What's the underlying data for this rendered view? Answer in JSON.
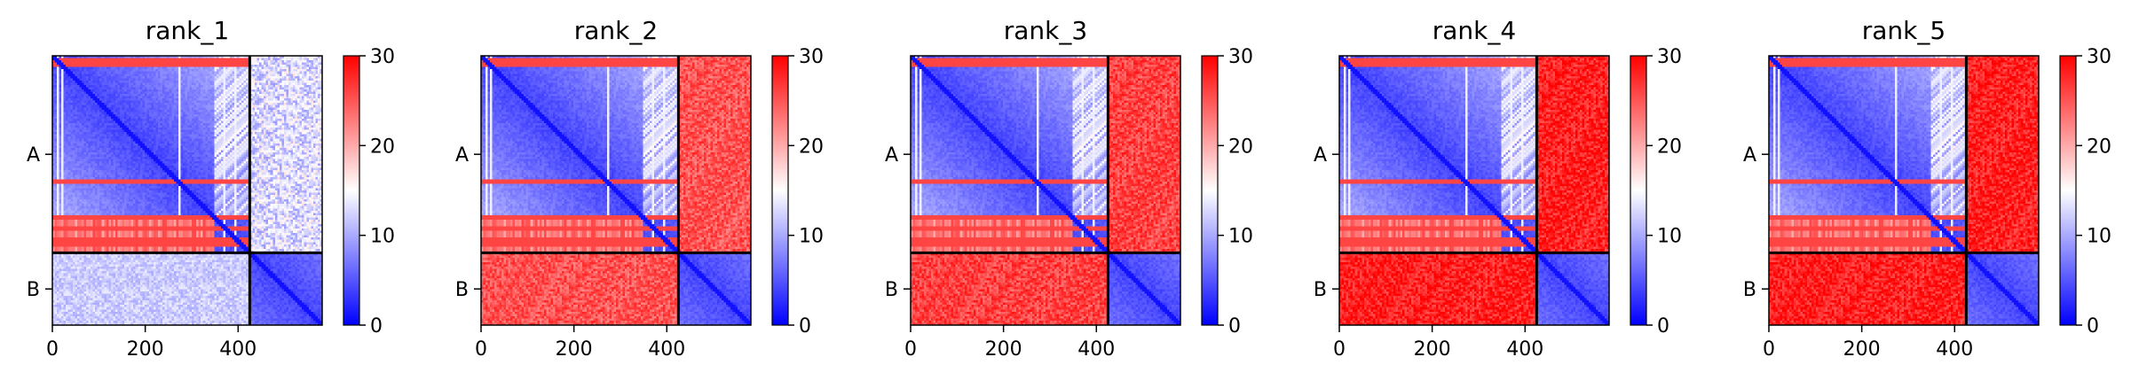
{
  "chart_data": [
    {
      "type": "heatmap",
      "title": "rank_1",
      "chains": [
        "A",
        "B"
      ],
      "chain_A_length": 425,
      "total_length": 581,
      "x_ticks": [
        0,
        200,
        400
      ],
      "colorbar": {
        "min": 0,
        "max": 30,
        "ticks": [
          0,
          10,
          20,
          30
        ],
        "colors": [
          "#0000ff",
          "#ffffff",
          "#ff0000"
        ]
      },
      "interchain_pae": 14
    },
    {
      "type": "heatmap",
      "title": "rank_2",
      "chains": [
        "A",
        "B"
      ],
      "chain_A_length": 425,
      "total_length": 581,
      "x_ticks": [
        0,
        200,
        400
      ],
      "colorbar": {
        "min": 0,
        "max": 30,
        "ticks": [
          0,
          10,
          20,
          30
        ],
        "colors": [
          "#0000ff",
          "#ffffff",
          "#ff0000"
        ]
      },
      "interchain_pae": 25
    },
    {
      "type": "heatmap",
      "title": "rank_3",
      "chains": [
        "A",
        "B"
      ],
      "chain_A_length": 425,
      "total_length": 581,
      "x_ticks": [
        0,
        200,
        400
      ],
      "colorbar": {
        "min": 0,
        "max": 30,
        "ticks": [
          0,
          10,
          20,
          30
        ],
        "colors": [
          "#0000ff",
          "#ffffff",
          "#ff0000"
        ]
      },
      "interchain_pae": 26
    },
    {
      "type": "heatmap",
      "title": "rank_4",
      "chains": [
        "A",
        "B"
      ],
      "chain_A_length": 425,
      "total_length": 581,
      "x_ticks": [
        0,
        200,
        400
      ],
      "colorbar": {
        "min": 0,
        "max": 30,
        "ticks": [
          0,
          10,
          20,
          30
        ],
        "colors": [
          "#0000ff",
          "#ffffff",
          "#ff0000"
        ]
      },
      "interchain_pae": 28
    },
    {
      "type": "heatmap",
      "title": "rank_5",
      "chains": [
        "A",
        "B"
      ],
      "chain_A_length": 425,
      "total_length": 581,
      "x_ticks": [
        0,
        200,
        400
      ],
      "colorbar": {
        "min": 0,
        "max": 30,
        "ticks": [
          0,
          10,
          20,
          30
        ],
        "colors": [
          "#0000ff",
          "#ffffff",
          "#ff0000"
        ]
      },
      "interchain_pae": 28
    }
  ]
}
